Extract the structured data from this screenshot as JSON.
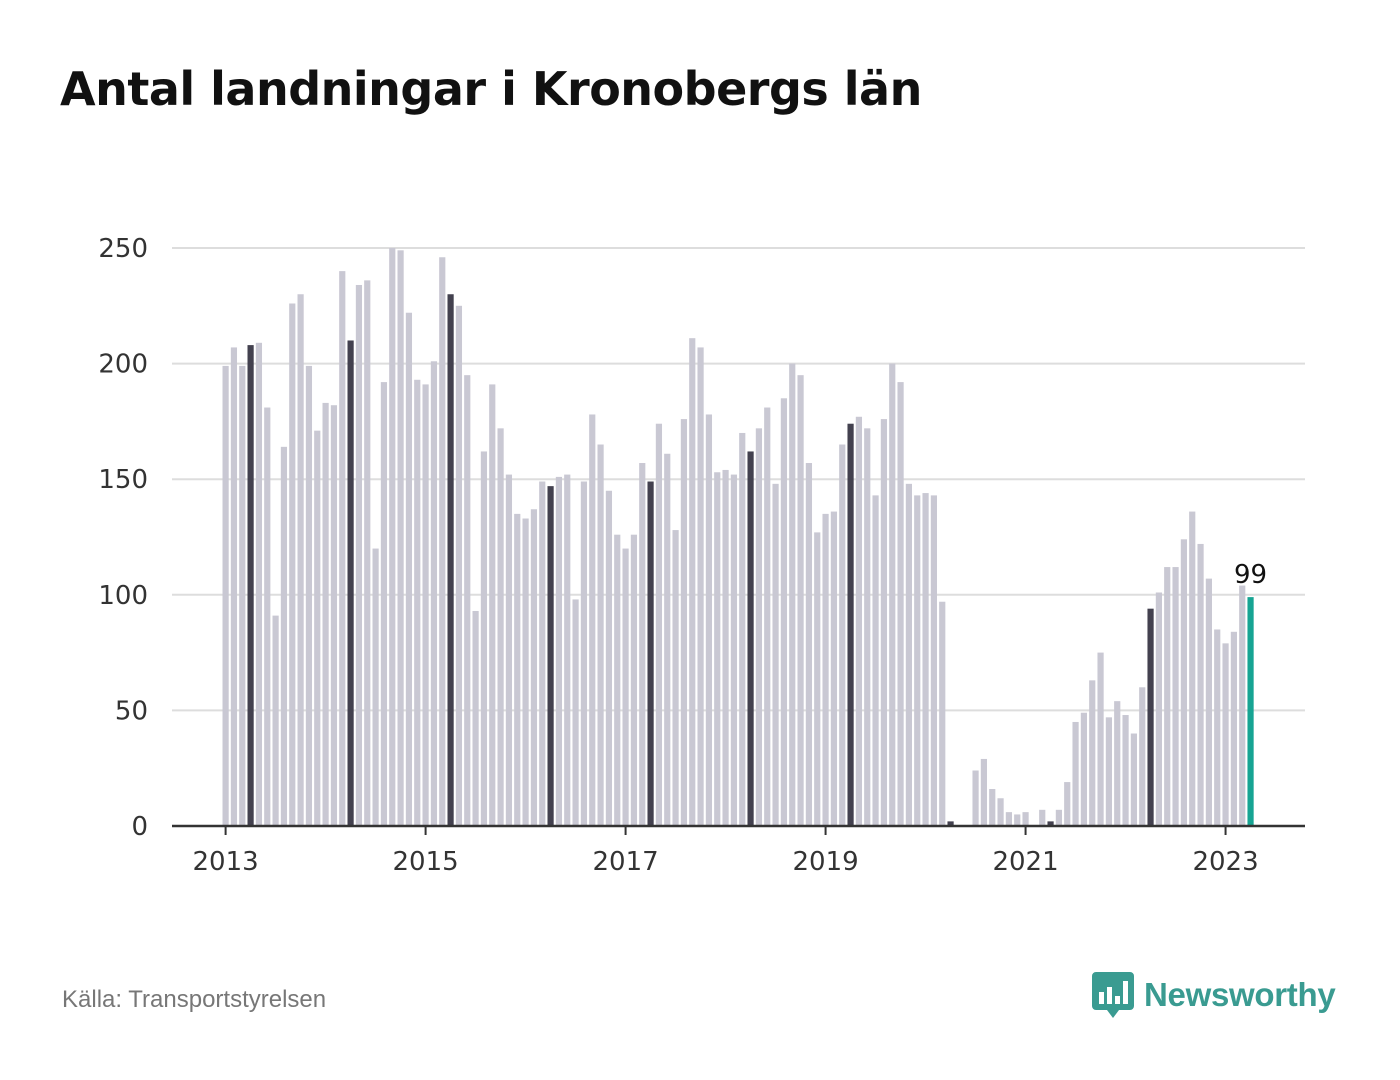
{
  "title": "Antal landningar i Kronobergs län",
  "source": "Källa: Transportstyrelsen",
  "brand": {
    "name": "Newsworthy",
    "icon": "newsworthy-logo-icon",
    "color": "#3a9b91"
  },
  "colors": {
    "bar": "#c9c8d3",
    "highlight_bar": "#43414f",
    "latest_bar": "#17a493",
    "grid": "#dddddd",
    "axis": "#333333"
  },
  "chart_data": {
    "type": "bar",
    "title": "Antal landningar i Kronobergs län",
    "xlabel": "",
    "ylabel": "",
    "ylim": [
      0,
      250
    ],
    "yticks": [
      "0",
      "50",
      "100",
      "150",
      "200",
      "250"
    ],
    "xticks": [
      "2013",
      "2015",
      "2017",
      "2019",
      "2021",
      "2023"
    ],
    "grid": true,
    "first_month": "2013-01",
    "last_month": "2023-04",
    "highlight_month": "April",
    "latest_label": "99",
    "values": [
      199,
      207,
      199,
      208,
      209,
      181,
      91,
      164,
      226,
      230,
      199,
      171,
      183,
      182,
      240,
      210,
      234,
      236,
      120,
      192,
      250,
      249,
      222,
      193,
      191,
      201,
      246,
      230,
      225,
      195,
      93,
      162,
      191,
      172,
      152,
      135,
      133,
      137,
      149,
      147,
      151,
      152,
      98,
      149,
      178,
      165,
      145,
      126,
      120,
      126,
      157,
      149,
      174,
      161,
      128,
      176,
      211,
      207,
      178,
      153,
      154,
      152,
      170,
      162,
      172,
      181,
      148,
      185,
      200,
      195,
      157,
      127,
      135,
      136,
      165,
      174,
      177,
      172,
      143,
      176,
      200,
      192,
      148,
      143,
      144,
      143,
      97,
      2,
      0,
      0,
      24,
      29,
      16,
      12,
      6,
      5,
      6,
      0,
      7,
      2,
      7,
      19,
      45,
      49,
      63,
      75,
      47,
      54,
      48,
      40,
      60,
      94,
      101,
      112,
      112,
      124,
      136,
      122,
      107,
      85,
      79,
      84,
      104,
      99
    ]
  }
}
